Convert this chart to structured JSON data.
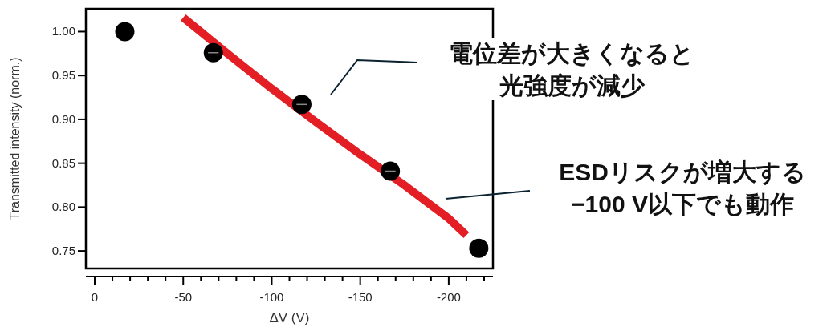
{
  "chart_data": {
    "type": "scatter",
    "xlabel": "ΔV (V)",
    "ylabel": "Transmitted intensity (norm.)",
    "xlim": [
      5,
      -225
    ],
    "ylim": [
      0.73,
      1.026
    ],
    "xticks": [
      0,
      {
        "value": -10,
        "label": null
      },
      {
        "value": -20,
        "label": null
      },
      {
        "value": -30,
        "label": null
      },
      {
        "value": -40,
        "label": null
      },
      -50,
      {
        "value": -60,
        "label": null
      },
      {
        "value": -70,
        "label": null
      },
      {
        "value": -80,
        "label": null
      },
      {
        "value": -90,
        "label": null
      },
      -100,
      {
        "value": -110,
        "label": null
      },
      {
        "value": -120,
        "label": null
      },
      {
        "value": -130,
        "label": null
      },
      {
        "value": -140,
        "label": null
      },
      -150,
      {
        "value": -160,
        "label": null
      },
      {
        "value": -170,
        "label": null
      },
      {
        "value": -180,
        "label": null
      },
      {
        "value": -190,
        "label": null
      },
      -200,
      {
        "value": -210,
        "label": null
      },
      {
        "value": -220,
        "label": null
      }
    ],
    "yticks": [
      0.75,
      {
        "value": 0.8,
        "label": "0.80"
      },
      0.85,
      {
        "value": 0.9,
        "label": "0.90"
      },
      0.95,
      {
        "value": 1.0,
        "label": "1.00"
      }
    ],
    "grid": false,
    "series": [
      {
        "type": "line",
        "marker": "none",
        "color": "#e31e24",
        "x": [
          -50,
          -75,
          -100,
          -125,
          -150,
          -175,
          -200,
          -210
        ],
        "values": [
          1.016,
          0.975,
          0.935,
          0.897,
          0.86,
          0.825,
          0.787,
          0.768
        ]
      },
      {
        "marker": "circle",
        "color": "#000000",
        "x": [
          -17,
          -67,
          -117,
          -167,
          -217
        ],
        "values": [
          1.0,
          0.976,
          0.917,
          0.841,
          0.753
        ],
        "xerrors": [
          null,
          3,
          3,
          3,
          null
        ]
      }
    ],
    "annotations": [
      "電位差が大きくなると光強度が減少",
      "ESDリスクが増大する −100 V以下でも動作"
    ]
  }
}
